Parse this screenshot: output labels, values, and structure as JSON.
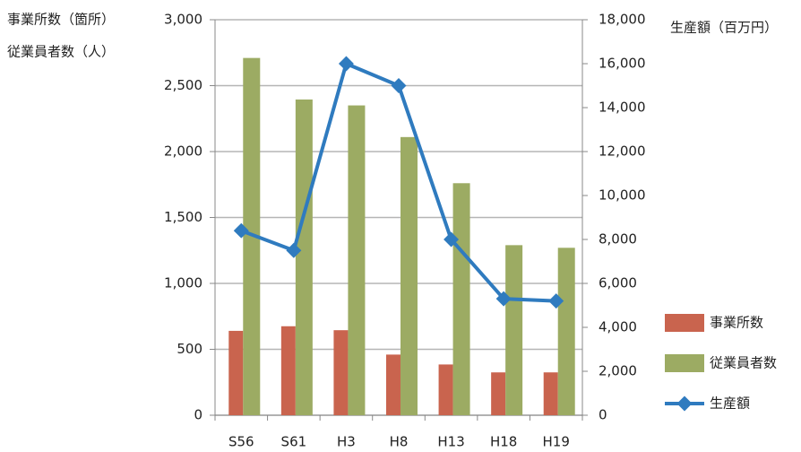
{
  "chart_data": {
    "type": "bar",
    "y_label": [
      "事業所数（箇所）",
      "従業員者数（人）"
    ],
    "y2_label": "生産額（百万円）",
    "categories": [
      "S56",
      "S61",
      "H3",
      "H8",
      "H13",
      "H18",
      "H19"
    ],
    "series": [
      {
        "name": "事業所数",
        "type": "bar",
        "color": "#c9644e",
        "values": [
          640,
          675,
          645,
          460,
          385,
          325,
          325
        ]
      },
      {
        "name": "従業員者数",
        "type": "bar",
        "color": "#9cab63",
        "values": [
          2710,
          2395,
          2350,
          2110,
          1760,
          1290,
          1270
        ]
      },
      {
        "name": "生産額",
        "type": "line",
        "axis": "y2",
        "color": "#2f7bbf",
        "values": [
          8400,
          7500,
          16000,
          15000,
          8000,
          5300,
          5200
        ]
      }
    ],
    "ylim": [
      0,
      3000
    ],
    "yticks": [
      0,
      500,
      {
        "value": 1000,
        "label": "1,000"
      },
      {
        "value": 1500,
        "label": "1,500"
      },
      {
        "value": 2000,
        "label": "2,000"
      },
      {
        "value": 2500,
        "label": "2,500"
      },
      {
        "value": 3000,
        "label": "3,000"
      }
    ],
    "y2lim": [
      0,
      18000
    ],
    "y2ticks": [
      0,
      {
        "value": 2000,
        "label": "2,000"
      },
      {
        "value": 4000,
        "label": "4,000"
      },
      {
        "value": 6000,
        "label": "6,000"
      },
      {
        "value": 8000,
        "label": "8,000"
      },
      {
        "value": 10000,
        "label": "10,000"
      },
      {
        "value": 12000,
        "label": "12,000"
      },
      {
        "value": 14000,
        "label": "14,000"
      },
      {
        "value": 16000,
        "label": "16,000"
      },
      {
        "value": 18000,
        "label": "18,000"
      }
    ],
    "grid": true
  }
}
